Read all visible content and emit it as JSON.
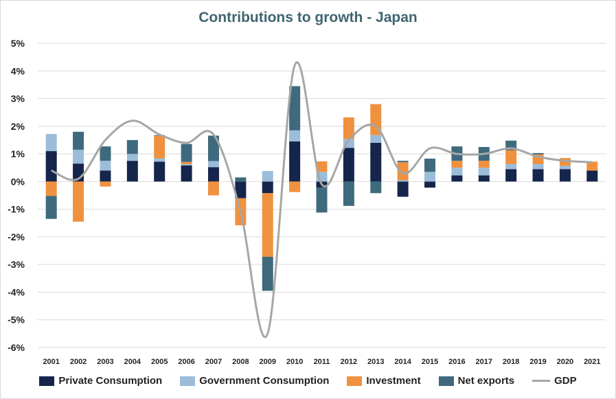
{
  "chart_data": {
    "type": "bar",
    "title": "Contributions to growth - Japan",
    "xlabel": "",
    "ylabel": "",
    "ylim": [
      -6,
      5
    ],
    "y_ticks": [
      "5%",
      "4%",
      "3%",
      "2%",
      "1%",
      "0%",
      "-1%",
      "-2%",
      "-3%",
      "-4%",
      "-5%",
      "-6%"
    ],
    "y_tick_values": [
      5,
      4,
      3,
      2,
      1,
      0,
      -1,
      -2,
      -3,
      -4,
      -5,
      -6
    ],
    "categories": [
      "2001",
      "2002",
      "2003",
      "2004",
      "2005",
      "2006",
      "2007",
      "2008",
      "2009",
      "2010",
      "2011",
      "2012",
      "2013",
      "2014",
      "2015",
      "2016",
      "2017",
      "2018",
      "2019",
      "2020",
      "2021"
    ],
    "stacked": true,
    "grid": true,
    "legend_position": "bottom",
    "series": [
      {
        "name": "Private Consumption",
        "color": "#16254b",
        "values": [
          1.1,
          0.65,
          0.4,
          0.75,
          0.72,
          0.58,
          0.52,
          -0.6,
          -0.42,
          1.45,
          -0.22,
          1.22,
          1.4,
          -0.55,
          -0.22,
          0.22,
          0.22,
          0.45,
          0.45,
          0.45,
          0.4
        ]
      },
      {
        "name": "Government Consumption",
        "color": "#9bbdd9",
        "values": [
          0.62,
          0.5,
          0.35,
          0.25,
          0.12,
          0.05,
          0.22,
          0.0,
          0.38,
          0.4,
          0.35,
          0.32,
          0.28,
          0.05,
          0.35,
          0.28,
          0.28,
          0.18,
          0.18,
          0.12,
          0.0
        ]
      },
      {
        "name": "Investment",
        "color": "#f0913f",
        "values": [
          -0.52,
          -1.45,
          -0.18,
          0.0,
          0.82,
          0.08,
          -0.5,
          -0.98,
          -2.3,
          -0.38,
          0.38,
          0.78,
          1.12,
          0.65,
          0.0,
          0.25,
          0.25,
          0.5,
          0.35,
          0.28,
          0.32
        ]
      },
      {
        "name": "Net exports",
        "color": "#3f6a7d",
        "values": [
          -0.83,
          0.65,
          0.52,
          0.5,
          0.02,
          0.65,
          0.92,
          0.15,
          -1.23,
          1.6,
          -0.9,
          -0.88,
          -0.42,
          0.05,
          0.48,
          0.52,
          0.5,
          0.35,
          0.05,
          0.0,
          0.0
        ]
      }
    ],
    "line_series": {
      "name": "GDP",
      "color": "#a6a6a6",
      "values": [
        0.4,
        0.1,
        1.5,
        2.2,
        1.7,
        1.4,
        1.7,
        -1.1,
        -5.5,
        4.2,
        -0.1,
        1.5,
        2.0,
        0.3,
        1.2,
        1.0,
        1.0,
        1.2,
        0.9,
        0.75,
        0.7
      ]
    }
  }
}
